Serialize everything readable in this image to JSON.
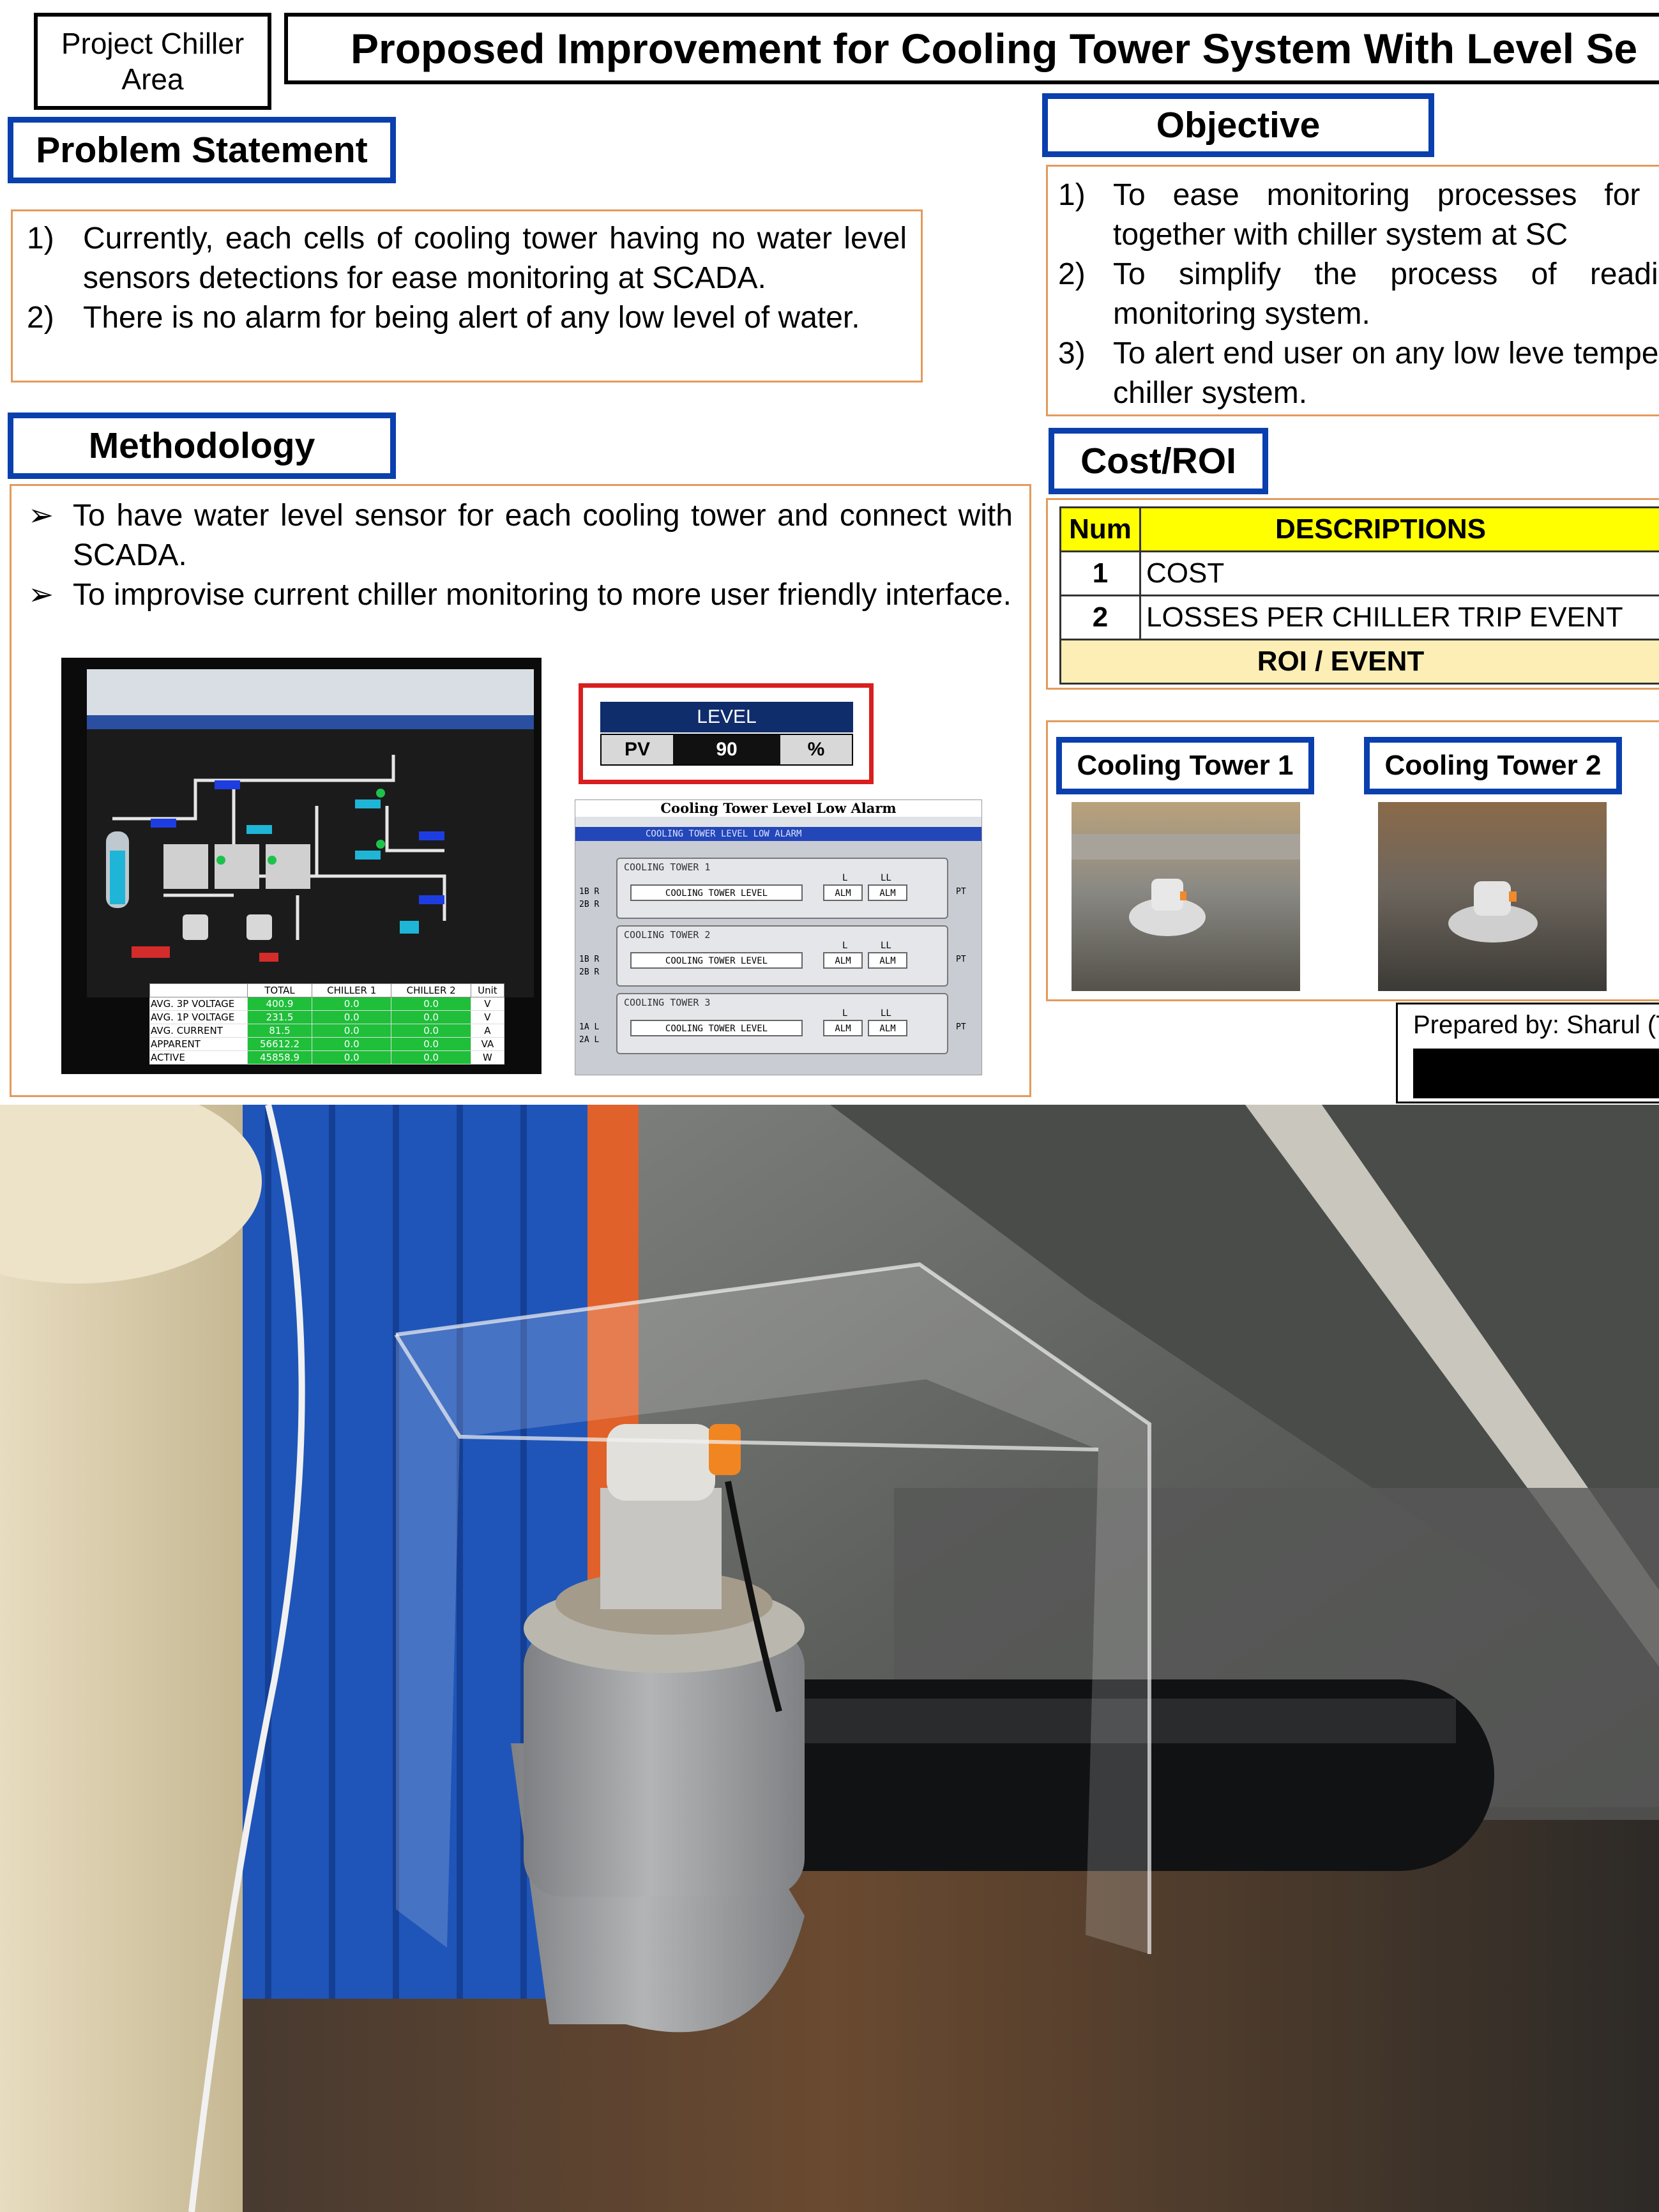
{
  "header": {
    "area_line1": "Project Chiller",
    "area_line2": "Area",
    "title": "Proposed Improvement for Cooling Tower System With Level Se"
  },
  "problem": {
    "heading": "Problem Statement",
    "items": [
      {
        "num": "1)",
        "text": "Currently, each cells of cooling tower having no water level sensors detections for ease monitoring at SCADA."
      },
      {
        "num": "2)",
        "text": "There is no alarm for being alert of any low level of water."
      }
    ]
  },
  "objective": {
    "heading": "Objective",
    "items": [
      {
        "num": "1)",
        "text": "To ease monitoring processes for c level together with chiller system at SC"
      },
      {
        "num": "2)",
        "text": "To simplify the process of reading wat monitoring system."
      },
      {
        "num": "3)",
        "text": "To alert end user on any low leve temperature of chiller system."
      }
    ]
  },
  "methodology": {
    "heading": "Methodology",
    "bullet_glyph": "➢",
    "items": [
      {
        "text": "To have water level sensor for each cooling tower and connect with SCADA."
      },
      {
        "text": "To improvise current chiller monitoring to more user friendly interface."
      }
    ]
  },
  "scada_screen": {
    "table_headers": [
      "TOTAL",
      "CHILLER 1",
      "CHILLER 2",
      "Unit"
    ],
    "rows": [
      {
        "label": "AVG. 3P VOLTAGE",
        "total": "400.9",
        "c1": "0.0",
        "c2": "0.0",
        "unit": "V"
      },
      {
        "label": "AVG. 1P VOLTAGE",
        "total": "231.5",
        "c1": "0.0",
        "c2": "0.0",
        "unit": "V"
      },
      {
        "label": "AVG. CURRENT",
        "total": "81.5",
        "c1": "0.0",
        "c2": "0.0",
        "unit": "A"
      },
      {
        "label": "APPARENT",
        "total": "56612.2",
        "c1": "0.0",
        "c2": "0.0",
        "unit": "VA"
      },
      {
        "label": "ACTIVE",
        "total": "45858.9",
        "c1": "0.0",
        "c2": "0.0",
        "unit": "W"
      }
    ]
  },
  "level_widget": {
    "title": "LEVEL",
    "pv_label": "PV",
    "value": "90",
    "unit": "%"
  },
  "alarm_panel": {
    "title": "Cooling Tower Level Low Alarm",
    "banner": "COOLING TOWER LEVEL LOW ALARM",
    "towers": [
      {
        "name": "COOLING TOWER 1",
        "field": "COOLING TOWER LEVEL",
        "l": "L",
        "ll": "LL",
        "alm": "ALM",
        "left": "1B R",
        "left2": "2B R"
      },
      {
        "name": "COOLING TOWER 2",
        "field": "COOLING TOWER LEVEL",
        "l": "L",
        "ll": "LL",
        "alm": "ALM",
        "left": "1B R",
        "left2": "2B R"
      },
      {
        "name": "COOLING TOWER 3",
        "field": "COOLING TOWER LEVEL",
        "l": "L",
        "ll": "LL",
        "alm": "ALM",
        "left": "1A L",
        "left2": "2A L"
      }
    ],
    "right_tag": "PT"
  },
  "cost_roi": {
    "heading": "Cost/ROI",
    "col_num": "Num",
    "col_desc": "DESCRIPTIONS",
    "rows": [
      {
        "num": "1",
        "desc": "COST"
      },
      {
        "num": "2",
        "desc": "LOSSES PER CHILLER TRIP EVENT"
      }
    ],
    "footer": "ROI / EVENT"
  },
  "towers": {
    "tower1": "Cooling Tower 1",
    "tower2": "Cooling Tower 2"
  },
  "prepared_by": "Prepared by: Sharul (Tu",
  "colors": {
    "heading_border": "#0a3fae",
    "panel_border": "#e39a5c",
    "table_header": "#ffff00",
    "table_footer": "#fdeeb5",
    "level_frame": "#d91e1e"
  }
}
